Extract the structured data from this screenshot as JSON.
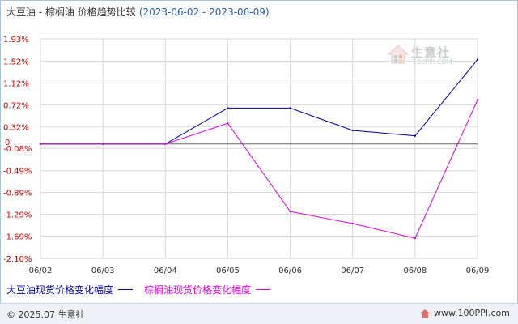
{
  "header": {
    "title": "大豆油 - 棕榈油 价格趋势比较",
    "date_range": "(2023-06-02 - 2023-06-09)"
  },
  "chart_data": {
    "type": "line",
    "title": "大豆油 - 棕榈油 价格趋势比较",
    "x": [
      "06/02",
      "06/03",
      "06/04",
      "06/05",
      "06/06",
      "06/07",
      "06/08",
      "06/09"
    ],
    "series": [
      {
        "name": "大豆油现货价格变化幅度",
        "color": "#000099",
        "values": [
          0.0,
          0.0,
          0.0,
          0.66,
          0.66,
          0.25,
          0.15,
          1.55
        ]
      },
      {
        "name": "棕榈油现货价格变化幅度",
        "color": "#e000e0",
        "values": [
          0.0,
          0.0,
          0.0,
          0.38,
          -1.24,
          -1.46,
          -1.73,
          0.81
        ]
      }
    ],
    "yticks": [
      "1.93%",
      "1.52%",
      "1.12%",
      "0.72%",
      "0.32%",
      "-0.08%",
      "-0.49%",
      "-0.89%",
      "-1.29%",
      "-1.69%",
      "-2.10%"
    ],
    "ylim": [
      -2.1,
      1.93
    ],
    "zero_label": "0",
    "grid": true,
    "legend_position": "bottom-left"
  },
  "legend": {
    "series1_label": "大豆油现货价格变化幅度",
    "series2_label": "棕榈油现货价格变化幅度"
  },
  "watermark": {
    "name": "生意社",
    "url": "100PPI.COM"
  },
  "footer": {
    "copyright": "© 2025.07 生意社",
    "site": "www.100PPI.com"
  },
  "colors": {
    "axis_labels": "#cc0000",
    "grid": "#d8d8d8",
    "zero_line": "#666666"
  }
}
